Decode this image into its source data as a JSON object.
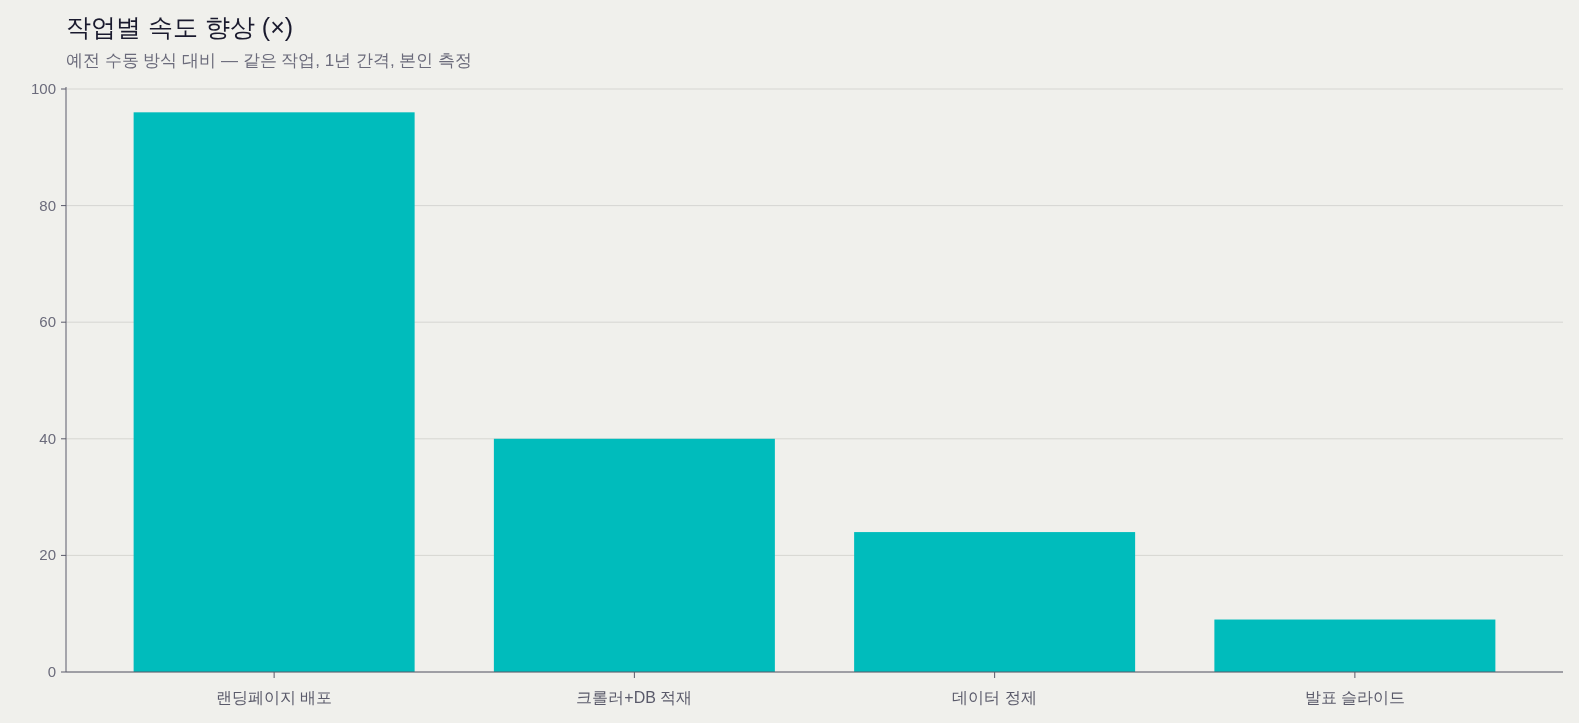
{
  "chart_data": {
    "type": "bar",
    "title": "작업별 속도 향상 (×)",
    "subtitle": "예전 수동 방식 대비 — 같은 작업, 1년 간격, 본인 측정",
    "categories": [
      "랜딩페이지 배포",
      "크롤러+DB 적재",
      "데이터 정제",
      "발표 슬라이드"
    ],
    "values": [
      96,
      40,
      24,
      9
    ],
    "color": "#00bcbc",
    "ylim": [
      0,
      100
    ],
    "yticks": [
      0,
      20,
      40,
      60,
      80,
      100
    ],
    "grid": "y"
  }
}
